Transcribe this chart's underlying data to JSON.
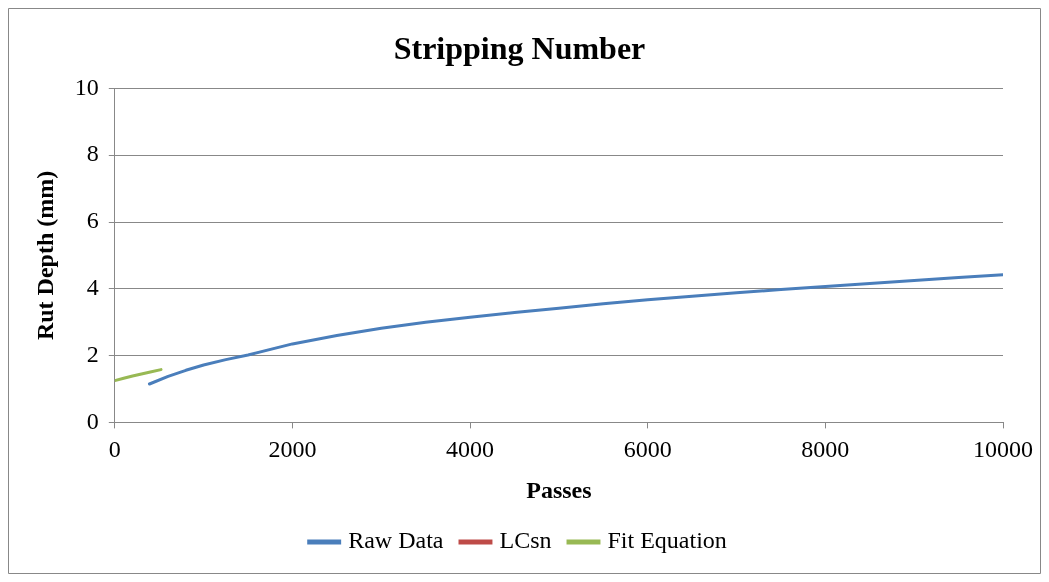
{
  "chart_data": {
    "type": "line",
    "title": "Stripping Number",
    "xlabel": "Passes",
    "ylabel": "Rut Depth (mm)",
    "xlim": [
      0,
      10000
    ],
    "xticks": [
      0,
      2000,
      4000,
      6000,
      8000,
      10000
    ],
    "ylim": [
      0,
      10
    ],
    "yticks": [
      0,
      2,
      4,
      6,
      8,
      10
    ],
    "grid": "y",
    "legend": "bottom",
    "marker": "none",
    "line_style": "solid",
    "series": [
      {
        "name": "Raw Data",
        "color": "#4a7ebb",
        "x": [
          390,
          600,
          800,
          1000,
          1250,
          1500,
          2000,
          2500,
          3000,
          3500,
          4000,
          4500,
          5000,
          5500,
          6000,
          6500,
          7000,
          7500,
          8000,
          8500,
          9000,
          9500,
          10000
        ],
        "values": [
          1.15,
          1.38,
          1.56,
          1.72,
          1.88,
          2.02,
          2.35,
          2.6,
          2.82,
          3.0,
          3.15,
          3.29,
          3.42,
          3.55,
          3.67,
          3.78,
          3.88,
          3.98,
          4.07,
          4.16,
          4.25,
          4.34,
          4.42
        ]
      },
      {
        "name": "LCsn",
        "color": "#be4b48"
      },
      {
        "name": "Fit Equation",
        "color": "#98b954",
        "x": [
          0,
          100,
          200,
          300,
          400,
          520
        ],
        "values": [
          1.25,
          1.32,
          1.39,
          1.45,
          1.51,
          1.58
        ]
      }
    ]
  }
}
